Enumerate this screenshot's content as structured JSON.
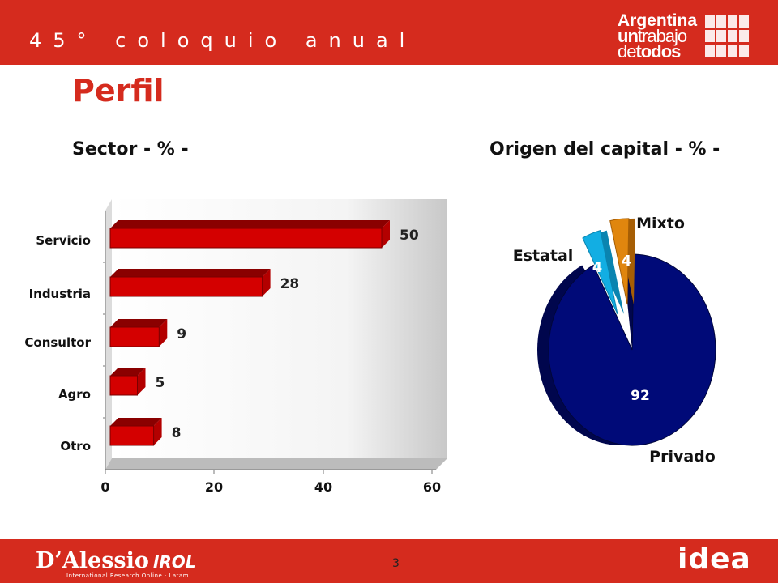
{
  "header": {
    "event_title": "45° coloquio anual"
  },
  "brand": {
    "line1": "Argentina",
    "line2a": "un",
    "line2b": "trabajo",
    "line3a": "de",
    "line3b": "todos"
  },
  "page_title": "Perfil",
  "footer": {
    "logo_name": "D’Alessio",
    "logo_suffix": "IROL",
    "logo_tagline": "International Research Online · Latam",
    "page_number": "3",
    "idea_logo": "idea"
  },
  "colors": {
    "brand_red": "#d52b1e",
    "bar_red": "#d40000",
    "privado": "#000a78",
    "estatal": "#12aee3",
    "mixto": "#e0860e"
  },
  "chart_data": [
    {
      "type": "bar",
      "orientation": "horizontal",
      "title": "Sector - % -",
      "categories": [
        "Servicio",
        "Industria",
        "Consultor",
        "Agro",
        "Otro"
      ],
      "values": [
        50,
        28,
        9,
        5,
        8
      ],
      "xlim": [
        0,
        60
      ],
      "xticks": [
        0,
        20,
        40,
        60
      ],
      "data_labels": [
        "50",
        "28",
        "9",
        "5",
        "8"
      ],
      "grid": false
    },
    {
      "type": "pie",
      "title": "Origen del capital - % -",
      "slices": [
        {
          "label": "Privado",
          "value": 92
        },
        {
          "label": "Estatal",
          "value": 4
        },
        {
          "label": "Mixto",
          "value": 4
        }
      ],
      "data_labels": [
        "92",
        "4",
        "4"
      ]
    }
  ]
}
